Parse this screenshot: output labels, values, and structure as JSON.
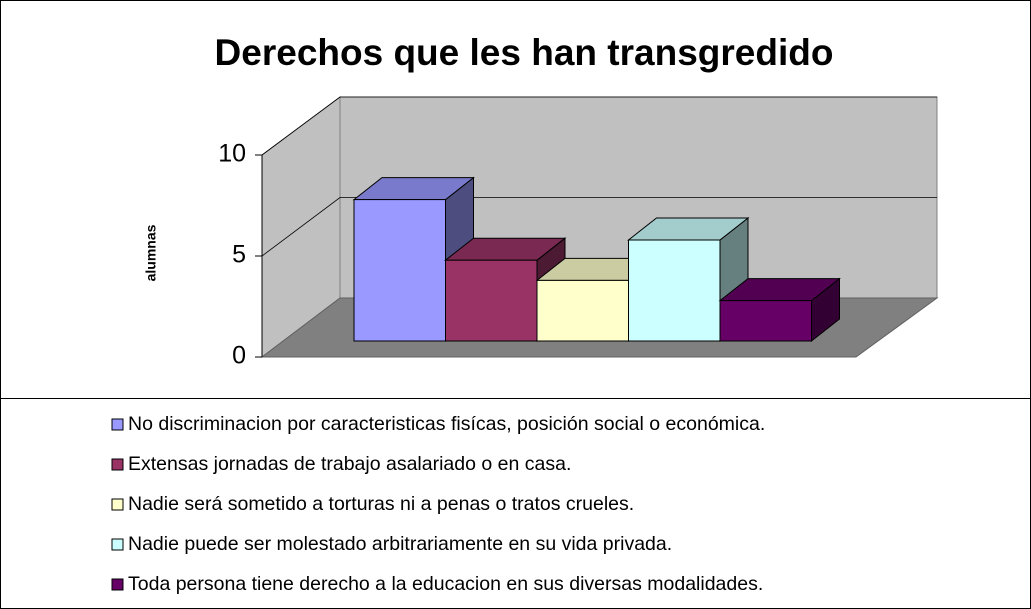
{
  "chart_data": {
    "type": "bar3d",
    "title": "Derechos que les han  transgredido",
    "ylabel": "alumnas",
    "ylim": [
      0,
      10
    ],
    "yticks": [
      0,
      5,
      10
    ],
    "grid": true,
    "series": [
      {
        "name": "No discriminacion por caracteristicas fisícas, posición social o económica.",
        "color": "#9999ff",
        "values": [
          7
        ]
      },
      {
        "name": "Extensas jornadas de trabajo asalariado o en casa.",
        "color": "#993366",
        "values": [
          4
        ]
      },
      {
        "name": "Nadie será sometido a torturas ni a penas o tratos crueles.",
        "color": "#ffffcc",
        "values": [
          3
        ]
      },
      {
        "name": "Nadie puede ser molestado arbitrariamente en su vida privada.",
        "color": "#ccffff",
        "values": [
          5
        ]
      },
      {
        "name": "Toda persona tiene derecho a la educacion en sus diversas modalidades.",
        "color": "#660066",
        "values": [
          2
        ]
      }
    ]
  }
}
